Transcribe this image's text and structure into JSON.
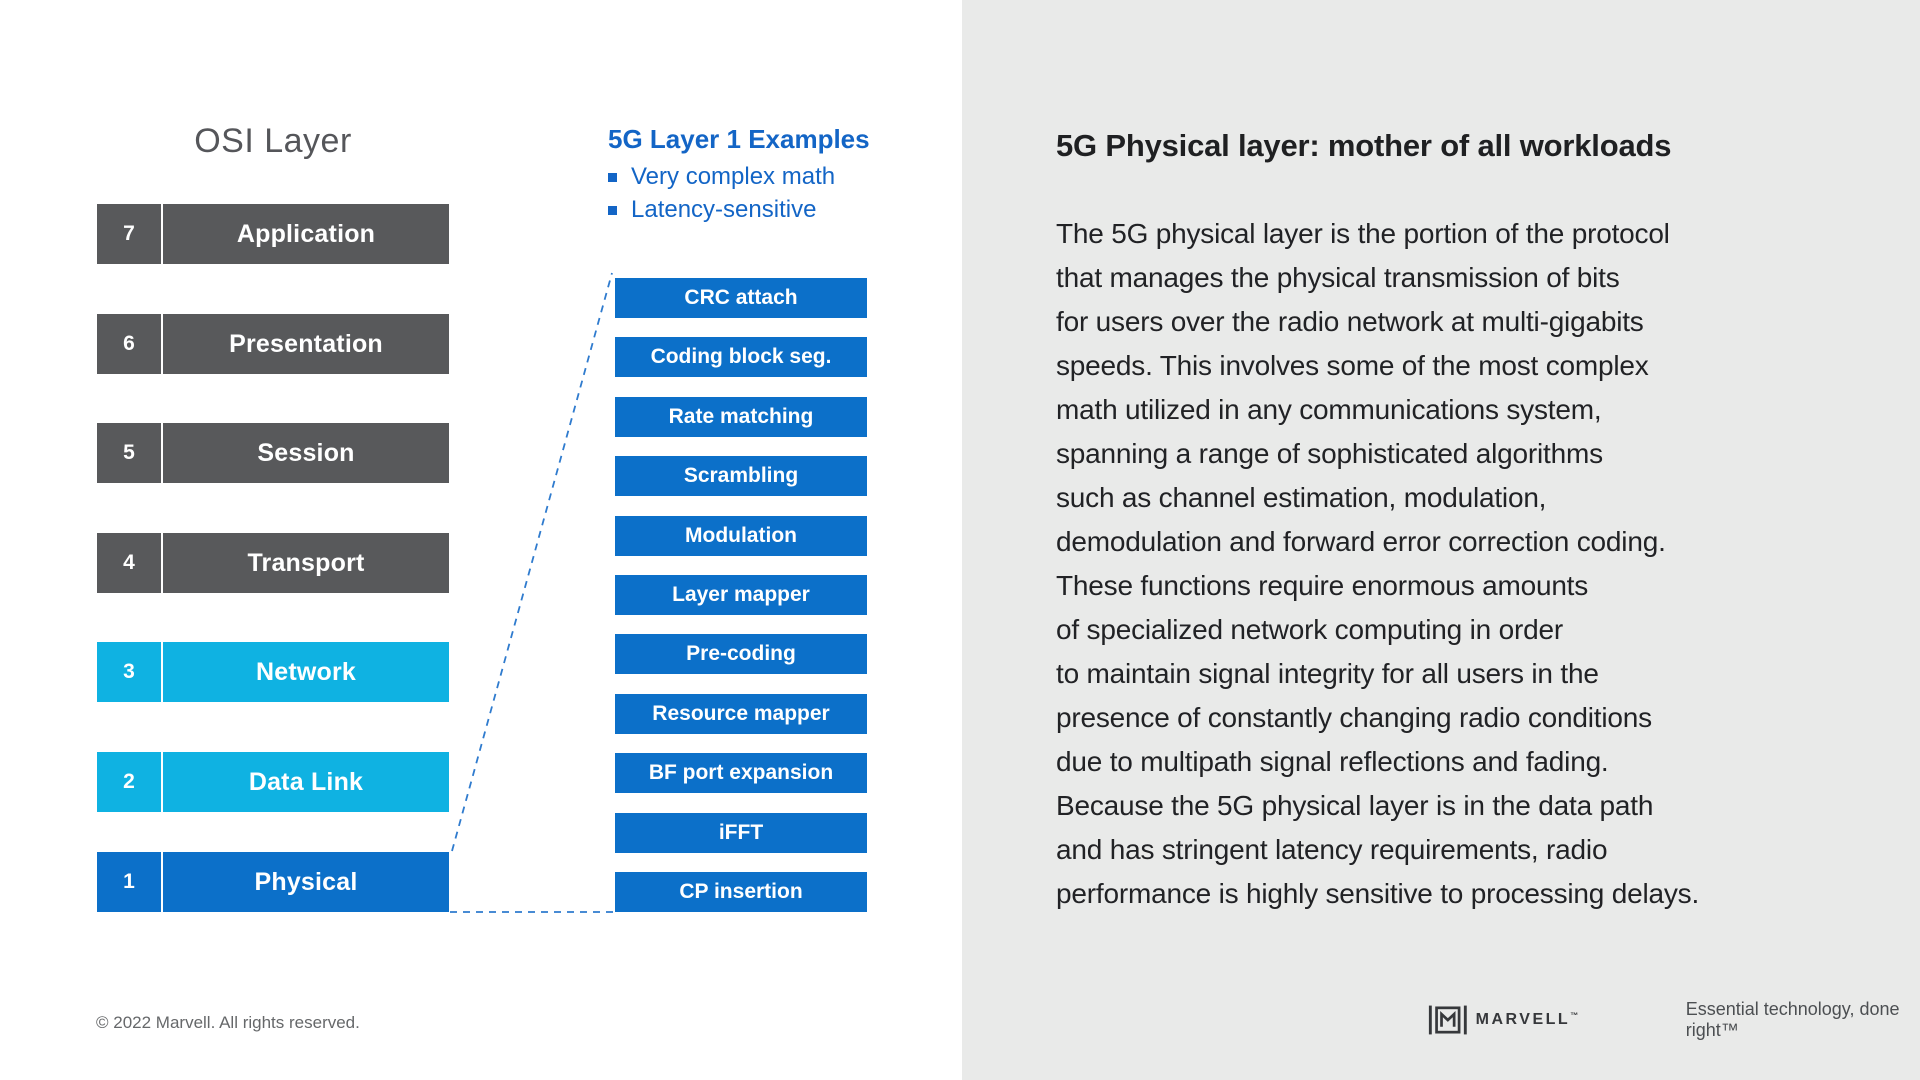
{
  "left_panel": {
    "title": "OSI Layer",
    "osi_layers": [
      {
        "number": "7",
        "label": "Application",
        "type": "gray"
      },
      {
        "number": "6",
        "label": "Presentation",
        "type": "gray"
      },
      {
        "number": "5",
        "label": "Session",
        "type": "gray"
      },
      {
        "number": "4",
        "label": "Transport",
        "type": "gray"
      },
      {
        "number": "3",
        "label": "Network",
        "type": "cyan"
      },
      {
        "number": "2",
        "label": "Data Link",
        "type": "cyan"
      },
      {
        "number": "1",
        "label": "Physical",
        "type": "blue"
      }
    ],
    "examples": {
      "title": "5G Layer 1 Examples",
      "bullets": [
        "Very complex math",
        "Latency-sensitive"
      ],
      "steps": [
        "CRC attach",
        "Coding block seg.",
        "Rate matching",
        "Scrambling",
        "Modulation",
        "Layer mapper",
        "Pre-coding",
        "Resource mapper",
        "BF port expansion",
        "iFFT",
        "CP insertion"
      ]
    }
  },
  "right_panel": {
    "heading": "5G Physical layer: mother of all workloads",
    "body": "The 5G physical layer is the portion of the protocol\nthat manages the physical transmission of bits\nfor users over the radio network at multi-gigabits\nspeeds. This involves some of the most complex\nmath utilized in any communications system,\nspanning a range of sophisticated algorithms\nsuch as channel estimation, modulation,\ndemodulation and forward error correction coding.\nThese functions require enormous amounts\nof specialized network computing in order\nto maintain signal integrity for all users in the\npresence of constantly changing radio conditions\ndue to multipath signal reflections and fading.\nBecause the 5G physical layer is in the data path\nand has stringent latency requirements, radio\nperformance is highly sensitive to processing delays."
  },
  "footer": {
    "copyright": "© 2022 Marvell. All rights reserved.",
    "logo_text": "MARVELL",
    "logo_tm": "™",
    "tagline": "Essential technology, done right™"
  },
  "colors": {
    "gray_box": "#58595b",
    "cyan_box": "#0fb2e2",
    "blue_box": "#0c70c9",
    "accent_blue_text": "#1365c6",
    "panel_gray": "#e9eae9",
    "connector_blue": "#2f7bce"
  }
}
